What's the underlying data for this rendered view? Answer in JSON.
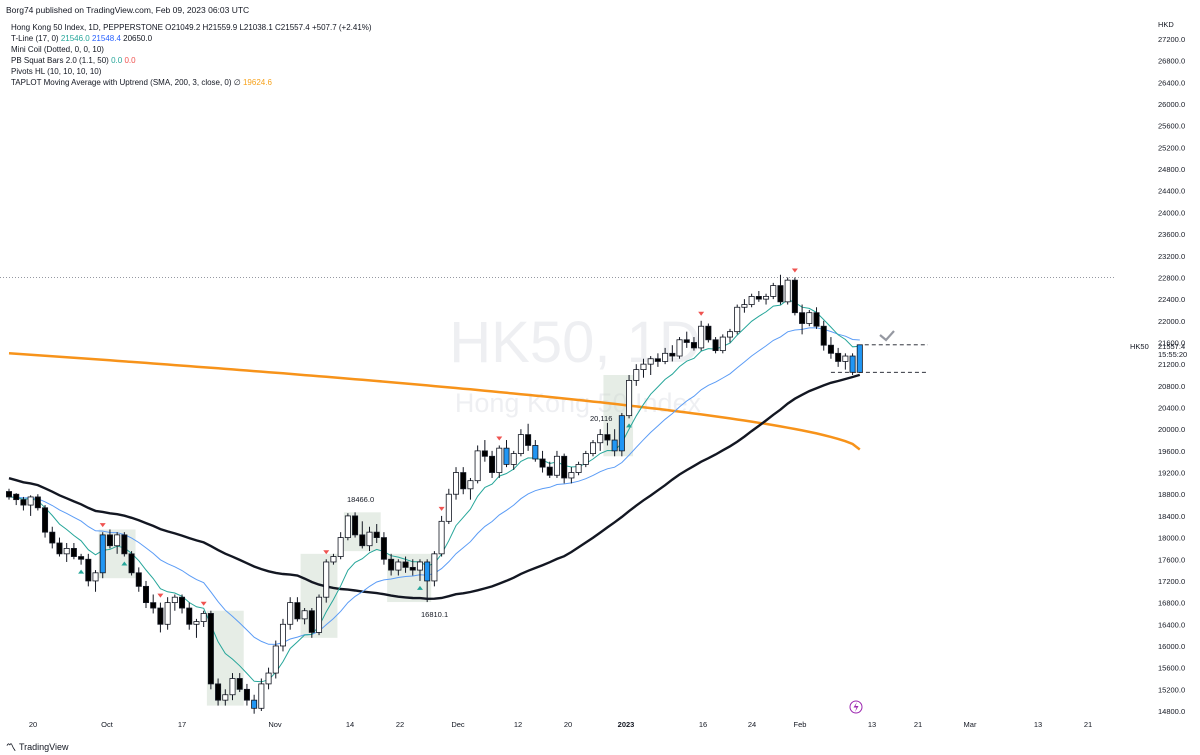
{
  "header": {
    "published": "Borg74 published on TradingView.com, Feb 09, 2023 06:03 UTC"
  },
  "legend": {
    "main": "Hong Kong 50 Index, 1D, PEPPERSTONE  O21049.2  H21559.9  L21038.1  C21557.4  +507.7 (+2.41%)",
    "tline_name": "T-Line (17, 0)",
    "tline_v1": "21546.0",
    "tline_v2": "21548.4",
    "tline_v3": "20650.0",
    "minicoil": "Mini Coil (Dotted, 0, 0, 10)",
    "pbsquat_name": "PB Squat Bars 2.0 (1.1, 50)",
    "pbsquat_v1": "0.0",
    "pbsquat_v2": "0.0",
    "pivots": "Pivots HL (10, 10, 10, 10)",
    "taplot_name": "TAPLOT Moving Average with Uptrend (SMA, 200, 3, close, 0)",
    "taplot_symbol": "∅",
    "taplot_value": "19624.6"
  },
  "watermark": {
    "symbol": "HK50, 1D",
    "name": "Hong Kong 50 Index"
  },
  "price_axis": {
    "currency": "HKD",
    "ticks": [
      "27200.0",
      "26800.0",
      "26400.0",
      "26000.0",
      "25600.0",
      "25200.0",
      "24800.0",
      "24400.0",
      "24000.0",
      "23600.0",
      "23200.0",
      "22800.0",
      "22400.0",
      "22000.0",
      "21600.0",
      "21200.0",
      "20800.0",
      "20400.0",
      "20000.0",
      "19600.0",
      "19200.0",
      "18800.0",
      "18400.0",
      "18000.0",
      "17600.0",
      "17200.0",
      "16800.0",
      "16400.0",
      "16000.0",
      "15600.0",
      "15200.0",
      "14800.0"
    ],
    "symbol_label": "HK50",
    "last_price": "21557.4",
    "countdown": "15:55:20"
  },
  "time_axis": {
    "labels": [
      "20",
      "Oct",
      "17",
      "Nov",
      "14",
      "22",
      "Dec",
      "12",
      "20",
      "2023",
      "16",
      "24",
      "Feb",
      "13",
      "21",
      "Mar",
      "13",
      "21"
    ]
  },
  "annotations": {
    "high1": "18466.0",
    "low1": "16810.1",
    "high2": "20,116"
  },
  "brand": {
    "name": "TradingView"
  },
  "colors": {
    "up": "#ffffff",
    "down": "#000000",
    "squat": "#2196f3",
    "tline": "#26a69a",
    "ema": "#5b9cf6",
    "sma50": "#131722",
    "sma200": "#f7931a",
    "pivot_high": "#ef5350",
    "pivot_low": "#26a69a"
  },
  "chart_data": {
    "type": "candlestick",
    "ylim": [
      14700,
      27500
    ],
    "ohlc": [
      [
        18850,
        18900,
        18700,
        18750
      ],
      [
        18800,
        18820,
        18600,
        18700
      ],
      [
        18700,
        18750,
        18500,
        18600
      ],
      [
        18600,
        18780,
        18400,
        18750
      ],
      [
        18750,
        18800,
        18500,
        18550
      ],
      [
        18550,
        18600,
        18000,
        18100
      ],
      [
        18100,
        18200,
        17800,
        17900
      ],
      [
        17900,
        18000,
        17650,
        17700
      ],
      [
        17700,
        17900,
        17550,
        17800
      ],
      [
        17800,
        17900,
        17600,
        17650
      ],
      [
        17650,
        17700,
        17500,
        17600
      ],
      [
        17600,
        17700,
        17100,
        17200
      ],
      [
        17200,
        17400,
        17000,
        17350
      ],
      [
        17350,
        18100,
        17250,
        18050
      ],
      [
        18050,
        18150,
        17800,
        17850
      ],
      [
        17850,
        18100,
        17700,
        18050
      ],
      [
        18050,
        18100,
        17650,
        17700
      ],
      [
        17700,
        17750,
        17300,
        17350
      ],
      [
        17350,
        17450,
        17000,
        17100
      ],
      [
        17100,
        17200,
        16700,
        16800
      ],
      [
        16800,
        16950,
        16600,
        16700
      ],
      [
        16700,
        16800,
        16250,
        16400
      ],
      [
        16400,
        16900,
        16300,
        16800
      ],
      [
        16800,
        16950,
        16650,
        16900
      ],
      [
        16900,
        16950,
        16600,
        16700
      ],
      [
        16700,
        16800,
        16300,
        16400
      ],
      [
        16400,
        16500,
        16150,
        16450
      ],
      [
        16450,
        16650,
        16350,
        16600
      ],
      [
        16600,
        16650,
        15200,
        15300
      ],
      [
        15300,
        15400,
        14900,
        15000
      ],
      [
        15000,
        15200,
        14900,
        15100
      ],
      [
        15100,
        15500,
        15000,
        15400
      ],
      [
        15400,
        15500,
        15150,
        15200
      ],
      [
        15200,
        15300,
        14900,
        15000
      ],
      [
        15000,
        15100,
        14750,
        14850
      ],
      [
        14850,
        15400,
        14800,
        15300
      ],
      [
        15300,
        15600,
        15200,
        15500
      ],
      [
        15500,
        16100,
        15400,
        16000
      ],
      [
        16000,
        16500,
        15900,
        16400
      ],
      [
        16400,
        16900,
        16300,
        16800
      ],
      [
        16800,
        16900,
        16450,
        16500
      ],
      [
        16500,
        16700,
        16400,
        16650
      ],
      [
        16650,
        16700,
        16150,
        16250
      ],
      [
        16250,
        16950,
        16200,
        16900
      ],
      [
        16900,
        17600,
        16800,
        17550
      ],
      [
        17550,
        17700,
        17500,
        17650
      ],
      [
        17650,
        18100,
        17600,
        18000
      ],
      [
        18000,
        18450,
        17950,
        18400
      ],
      [
        18400,
        18466,
        18000,
        18050
      ],
      [
        18050,
        18300,
        17800,
        17850
      ],
      [
        17850,
        18200,
        17750,
        18100
      ],
      [
        18100,
        18250,
        17900,
        18000
      ],
      [
        18000,
        18100,
        17500,
        17600
      ],
      [
        17600,
        17700,
        17300,
        17400
      ],
      [
        17400,
        17600,
        17300,
        17550
      ],
      [
        17550,
        17650,
        17350,
        17450
      ],
      [
        17450,
        17600,
        17300,
        17400
      ],
      [
        17400,
        17600,
        17200,
        17550
      ],
      [
        17550,
        17600,
        16810,
        17200
      ],
      [
        17200,
        17750,
        17100,
        17700
      ],
      [
        17700,
        18400,
        17650,
        18300
      ],
      [
        18300,
        18900,
        18250,
        18800
      ],
      [
        18800,
        19300,
        18700,
        19200
      ],
      [
        19200,
        19300,
        18800,
        18900
      ],
      [
        18900,
        19100,
        18700,
        19050
      ],
      [
        19050,
        19700,
        19000,
        19600
      ],
      [
        19600,
        19800,
        19400,
        19500
      ],
      [
        19500,
        19600,
        19100,
        19200
      ],
      [
        19200,
        19700,
        19100,
        19650
      ],
      [
        19650,
        19800,
        19300,
        19350
      ],
      [
        19350,
        19600,
        19250,
        19550
      ],
      [
        19550,
        20000,
        19500,
        19900
      ],
      [
        19900,
        20100,
        19600,
        19700
      ],
      [
        19700,
        19800,
        19400,
        19450
      ],
      [
        19450,
        19600,
        19200,
        19300
      ],
      [
        19300,
        19400,
        19100,
        19150
      ],
      [
        19150,
        19600,
        19100,
        19500
      ],
      [
        19500,
        19550,
        19000,
        19100
      ],
      [
        19100,
        19300,
        19000,
        19200
      ],
      [
        19200,
        19400,
        19150,
        19350
      ],
      [
        19350,
        19600,
        19300,
        19550
      ],
      [
        19550,
        19800,
        19500,
        19750
      ],
      [
        19750,
        20000,
        19600,
        19900
      ],
      [
        19900,
        20116,
        19700,
        19800
      ],
      [
        19800,
        20000,
        19500,
        19600
      ],
      [
        19600,
        20300,
        19500,
        20250
      ],
      [
        20250,
        21000,
        20200,
        20900
      ],
      [
        20900,
        21200,
        20800,
        21100
      ],
      [
        21100,
        21300,
        20950,
        21200
      ],
      [
        21200,
        21350,
        21000,
        21300
      ],
      [
        21300,
        21400,
        21150,
        21250
      ],
      [
        21250,
        21500,
        21200,
        21400
      ],
      [
        21400,
        21550,
        21250,
        21350
      ],
      [
        21350,
        21700,
        21300,
        21650
      ],
      [
        21650,
        21800,
        21500,
        21600
      ],
      [
        21600,
        21700,
        21450,
        21500
      ],
      [
        21500,
        22000,
        21450,
        21900
      ],
      [
        21900,
        21950,
        21600,
        21650
      ],
      [
        21650,
        21700,
        21400,
        21450
      ],
      [
        21450,
        21750,
        21400,
        21700
      ],
      [
        21700,
        21850,
        21600,
        21800
      ],
      [
        21800,
        22300,
        21750,
        22250
      ],
      [
        22250,
        22400,
        22150,
        22300
      ],
      [
        22300,
        22500,
        22250,
        22450
      ],
      [
        22450,
        22550,
        22350,
        22400
      ],
      [
        22400,
        22500,
        22300,
        22450
      ],
      [
        22450,
        22700,
        22400,
        22650
      ],
      [
        22650,
        22850,
        22300,
        22350
      ],
      [
        22350,
        22800,
        22300,
        22750
      ],
      [
        22750,
        22800,
        22100,
        22150
      ],
      [
        22150,
        22300,
        21750,
        21950
      ],
      [
        21950,
        22200,
        21900,
        22150
      ],
      [
        22150,
        22250,
        21850,
        21900
      ],
      [
        21900,
        22000,
        21450,
        21550
      ],
      [
        21550,
        21700,
        21300,
        21400
      ],
      [
        21400,
        21500,
        21150,
        21250
      ],
      [
        21250,
        21400,
        21100,
        21350
      ],
      [
        21350,
        21400,
        21000,
        21050
      ],
      [
        21049.2,
        21559.9,
        21038.1,
        21557.4
      ]
    ],
    "squat_bars": [
      13,
      34,
      58,
      69,
      73,
      84,
      85,
      117,
      118
    ],
    "pivot_highs": [
      13,
      21,
      27,
      44,
      60,
      68,
      96,
      109
    ],
    "pivot_lows": [
      10,
      16,
      57,
      86
    ],
    "consolidation_boxes": [
      [
        13,
        17
      ],
      [
        28,
        32
      ],
      [
        41,
        45
      ],
      [
        47,
        51
      ],
      [
        53,
        58
      ],
      [
        83,
        86
      ]
    ],
    "hline_high": 22800,
    "dashed_levels": [
      21557.4,
      21050
    ]
  }
}
